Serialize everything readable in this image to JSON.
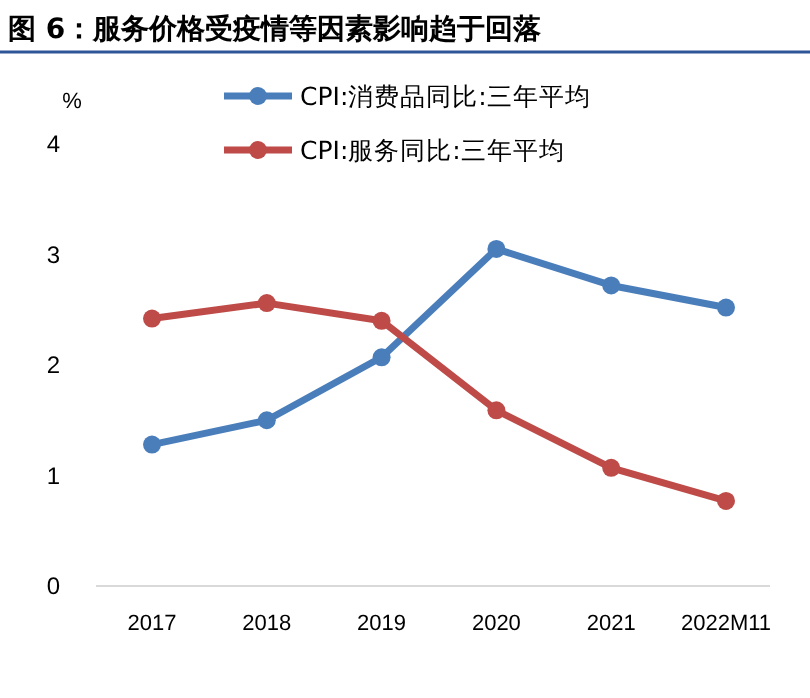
{
  "chart_data": {
    "type": "line",
    "title": "图 6：服务价格受疫情等因素影响趋于回落",
    "ylabel": "%",
    "categories": [
      "2017",
      "2018",
      "2019",
      "2020",
      "2021",
      "2022M11"
    ],
    "series": [
      {
        "name": "CPI:消费品同比:三年平均",
        "color": "#4a7ebb",
        "values": [
          1.28,
          1.5,
          2.07,
          3.05,
          2.72,
          2.52
        ]
      },
      {
        "name": "CPI:服务同比:三年平均",
        "color": "#be4b48",
        "values": [
          2.42,
          2.56,
          2.4,
          1.59,
          1.07,
          0.77
        ]
      }
    ],
    "ylim": [
      0,
      4
    ],
    "yticks": [
      0,
      1,
      2,
      3,
      4
    ],
    "grid": false,
    "legend": "top",
    "marker": "circle",
    "line_style": "solid"
  }
}
